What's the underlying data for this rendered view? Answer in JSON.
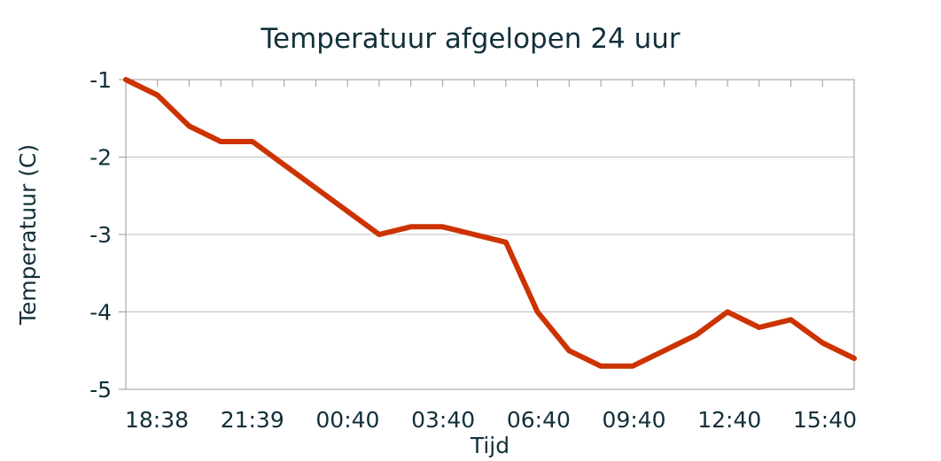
{
  "chart_data": {
    "type": "line",
    "title": "Temperatuur afgelopen 24 uur",
    "xlabel": "Tijd",
    "ylabel": "Temperatuur (C)",
    "ylim": [
      -5,
      -1
    ],
    "yticks": [
      "-1",
      "-2",
      "-3",
      "-4",
      "-5"
    ],
    "xticks": [
      "18:38",
      "21:39",
      "00:40",
      "03:40",
      "06:40",
      "09:40",
      "12:40",
      "15:40"
    ],
    "grid": true,
    "line_color": "#cc3300",
    "grid_color": "#c0c0c0",
    "text_color": "#12303a",
    "series": [
      {
        "values": [
          -1.0,
          -1.2,
          -1.6,
          -1.8,
          -1.8,
          -2.1,
          -2.4,
          -2.7,
          -3.0,
          -2.9,
          -2.9,
          -3.0,
          -3.1,
          -4.0,
          -4.5,
          -4.7,
          -4.7,
          -4.5,
          -4.3,
          -4.0,
          -4.2,
          -4.1,
          -4.4,
          -4.6
        ]
      }
    ]
  }
}
